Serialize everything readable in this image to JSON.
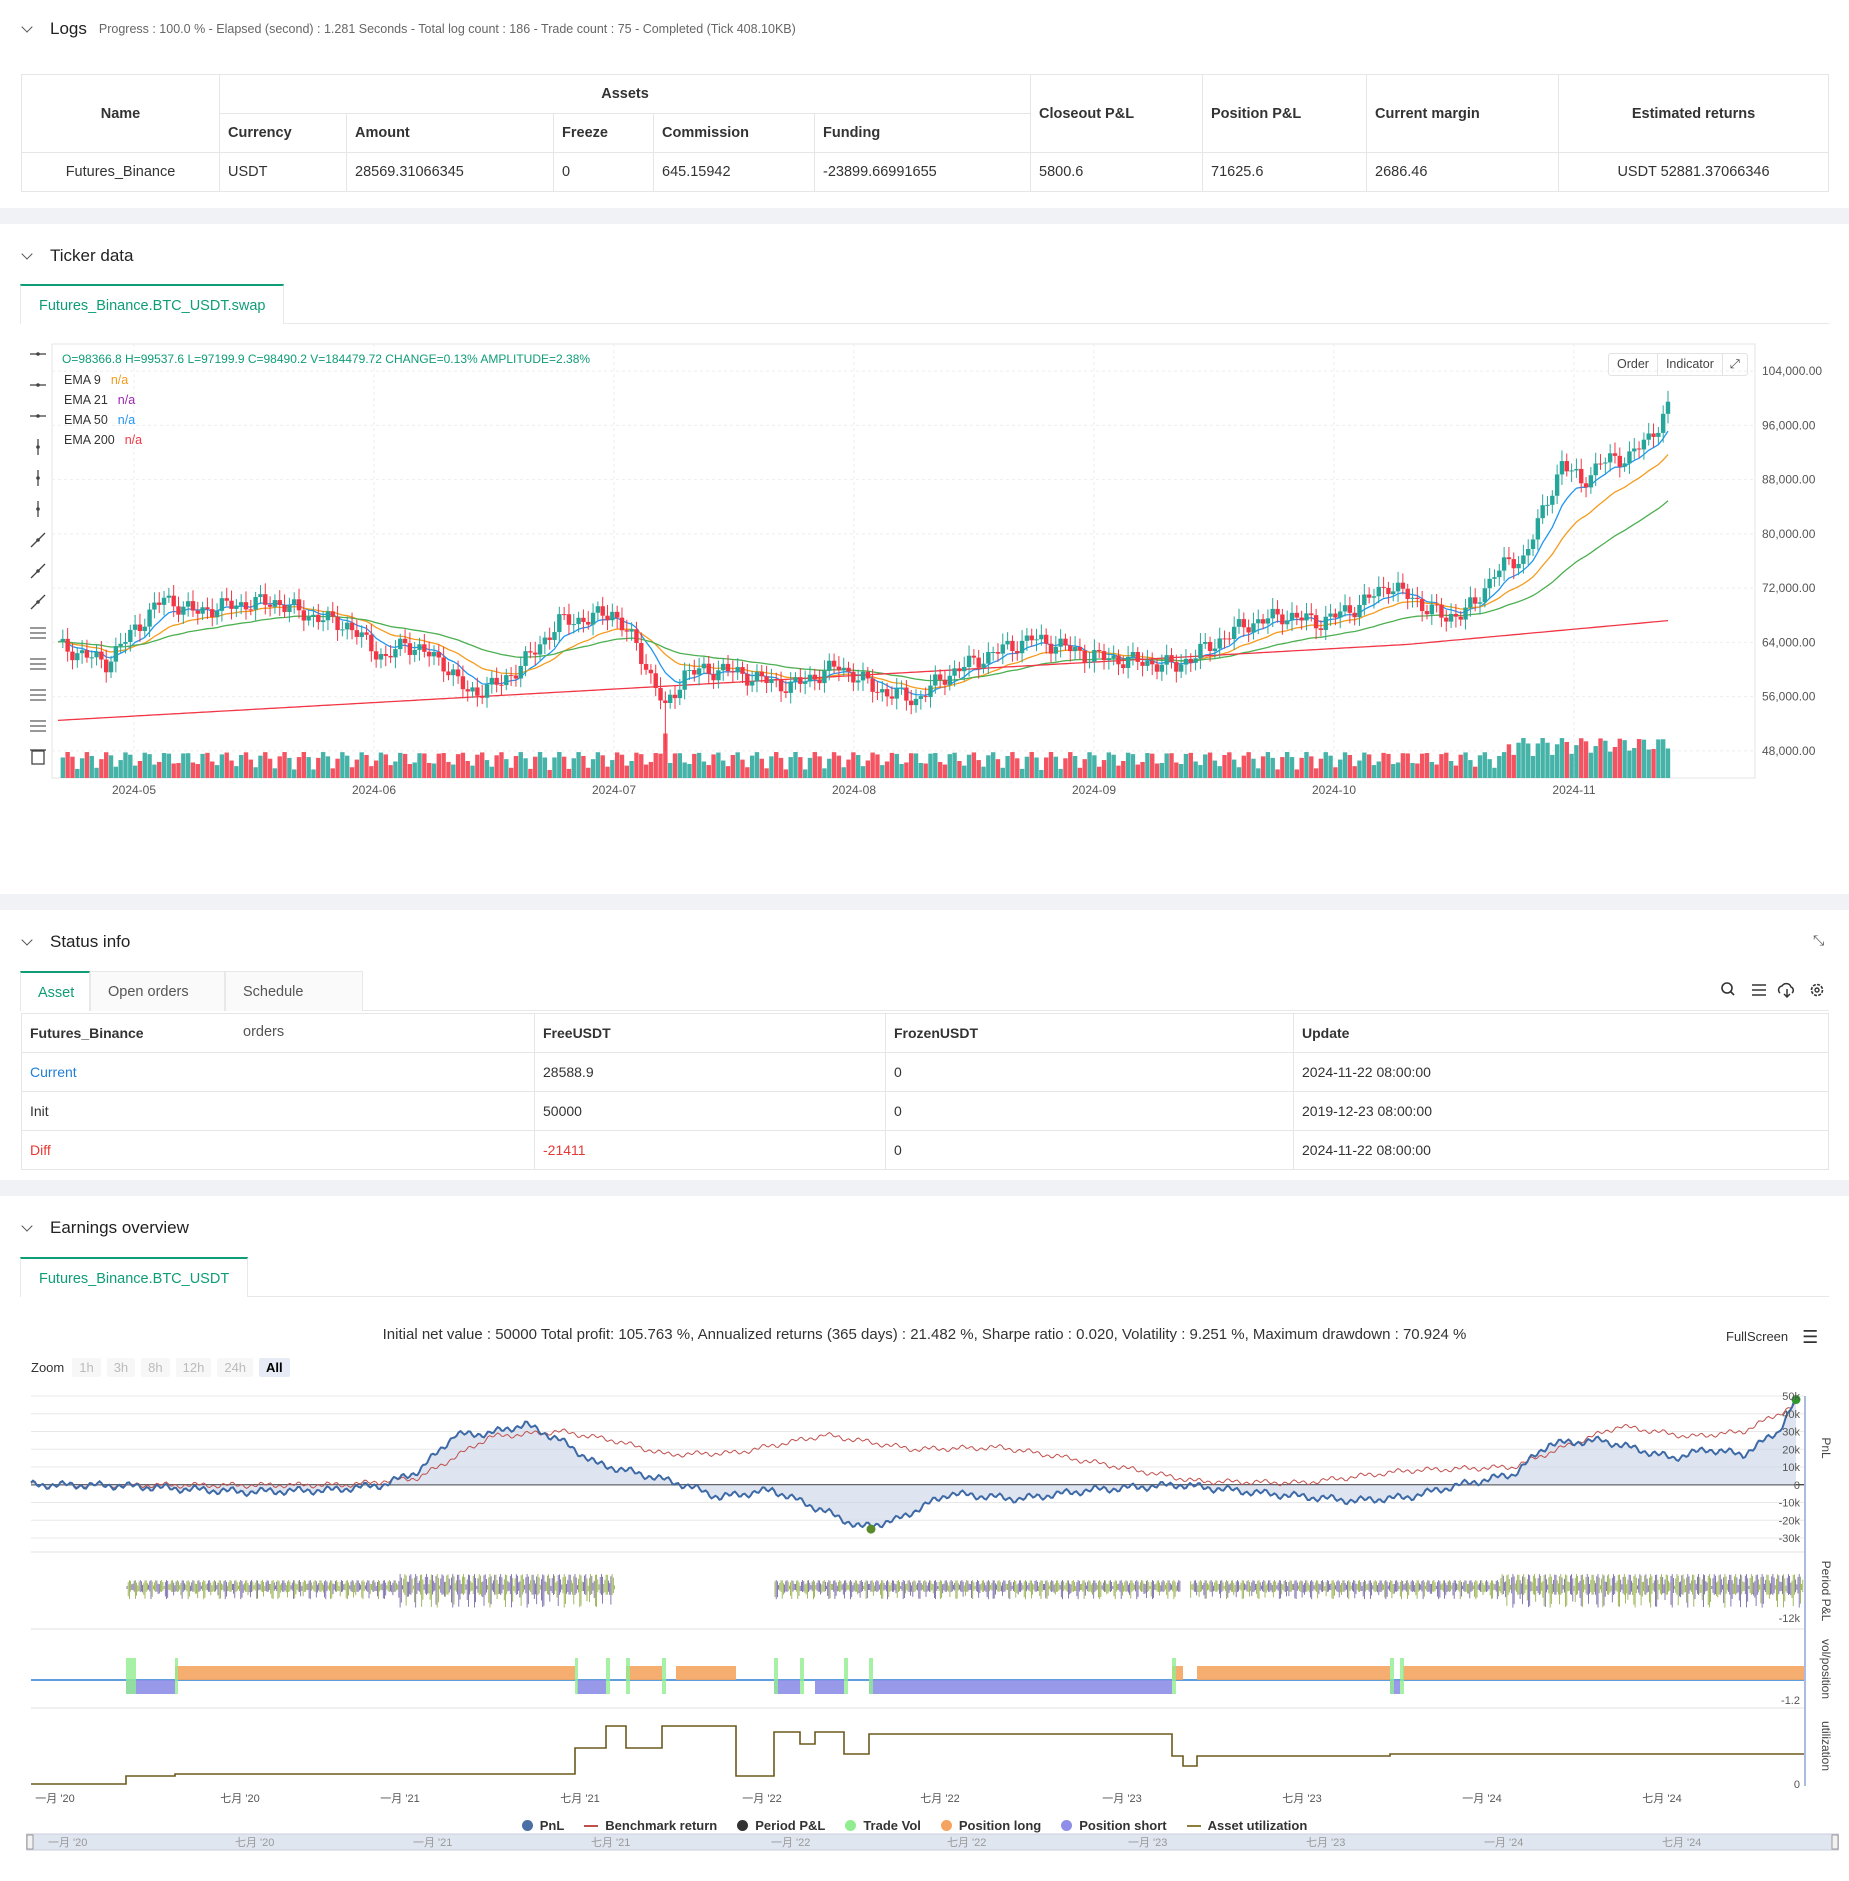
{
  "logs": {
    "title": "Logs",
    "progress": "Progress : 100.0 % - Elapsed (second) : 1.281 Seconds - Total log count : 186 - Trade count : 75 - Completed (Tick 408.10KB)",
    "headers": {
      "name": "Name",
      "assets": "Assets",
      "currency": "Currency",
      "amount": "Amount",
      "freeze": "Freeze",
      "commission": "Commission",
      "funding": "Funding",
      "closeout": "Closeout P&L",
      "position": "Position P&L",
      "margin": "Current margin",
      "estimated": "Estimated returns"
    },
    "row": {
      "name": "Futures_Binance",
      "currency": "USDT",
      "amount": "28569.31066345",
      "freeze": "0",
      "commission": "645.15942",
      "funding": "-23899.66991655",
      "closeout": "5800.6",
      "position": "71625.6",
      "margin": "2686.46",
      "estimated": "USDT 52881.37066346"
    }
  },
  "ticker": {
    "title": "Ticker data",
    "tab": "Futures_Binance.BTC_USDT.swap",
    "ohlc": "O=98366.8 H=99537.6 L=97199.9 C=98490.2 V=184479.72 CHANGE=0.13% AMPLITUDE=2.38%",
    "indicators": [
      {
        "name": "EMA 9",
        "value": "n/a",
        "color": "#f59b1c"
      },
      {
        "name": "EMA 21",
        "value": "n/a",
        "color": "#9c27b0"
      },
      {
        "name": "EMA 50",
        "value": "n/a",
        "color": "#2196f3"
      },
      {
        "name": "EMA 200",
        "value": "n/a",
        "color": "#f23645"
      }
    ],
    "buttons": {
      "order": "Order",
      "indicator": "Indicator"
    },
    "y_ticks": [
      "104,000.00",
      "96,000.00",
      "88,000.00",
      "80,000.00",
      "72,000.00",
      "64,000.00",
      "56,000.00",
      "48,000.00"
    ],
    "x_ticks": [
      "2024-05",
      "2024-06",
      "2024-07",
      "2024-08",
      "2024-09",
      "2024-10",
      "2024-11"
    ],
    "colors": {
      "up": "#26a69a",
      "down": "#f23645",
      "ema_fast": "#2196f3",
      "ema_mid": "#f59b1c",
      "ema_slow": "#4caf50",
      "ema_long": "#f23645"
    }
  },
  "status": {
    "title": "Status info",
    "tabs": [
      "Asset",
      "Open orders",
      "Schedule orders"
    ],
    "headers": [
      "Futures_Binance",
      "FreeUSDT",
      "FrozenUSDT",
      "Update"
    ],
    "rows": [
      {
        "label": "Current",
        "free": "28588.9",
        "frozen": "0",
        "update": "2024-11-22 08:00:00",
        "color": "#1f7ed6"
      },
      {
        "label": "Init",
        "free": "50000",
        "frozen": "0",
        "update": "2019-12-23 08:00:00",
        "color": "#333333"
      },
      {
        "label": "Diff",
        "free": "-21411",
        "frozen": "0",
        "update": "2024-11-22 08:00:00",
        "color": "#e53935"
      }
    ]
  },
  "earnings": {
    "title": "Earnings overview",
    "tab": "Futures_Binance.BTC_USDT",
    "summary": "Initial net value : 50000 Total profit: 105.763 %, Annualized returns (365 days) : 21.482 %, Sharpe ratio : 0.020, Volatility : 9.251 %, Maximum drawdown : 70.924 %",
    "fullscreen": "FullScreen",
    "zoom_label": "Zoom",
    "zoom_buttons": [
      "1h",
      "3h",
      "8h",
      "12h",
      "24h",
      "All"
    ],
    "pnl_ticks": [
      "50k",
      "40k",
      "30k",
      "20k",
      "10k",
      "0",
      "-10k",
      "-20k",
      "-30k"
    ],
    "period_tick": "-12k",
    "vol_tick": "-1.2",
    "util_tick": "0",
    "axis_labels": [
      "PnL",
      "Period P&L",
      "vol/position",
      "utilization"
    ],
    "x_ticks": [
      "一月 '20",
      "七月 '20",
      "一月 '21",
      "七月 '21",
      "一月 '22",
      "七月 '22",
      "一月 '23",
      "七月 '23",
      "一月 '24",
      "七月 '24"
    ],
    "legend": [
      {
        "name": "PnL",
        "color": "#4a6fa5",
        "shape": "dot"
      },
      {
        "name": "Benchmark return",
        "color": "#c0504d",
        "shape": "line"
      },
      {
        "name": "Period P&L",
        "color": "#333333",
        "shape": "dot"
      },
      {
        "name": "Trade Vol",
        "color": "#90ee90",
        "shape": "dot"
      },
      {
        "name": "Position long",
        "color": "#f4a460",
        "shape": "dot"
      },
      {
        "name": "Position short",
        "color": "#8e8ee8",
        "shape": "dot"
      },
      {
        "name": "Asset utilization",
        "color": "#8b7d3a",
        "shape": "line"
      }
    ]
  }
}
